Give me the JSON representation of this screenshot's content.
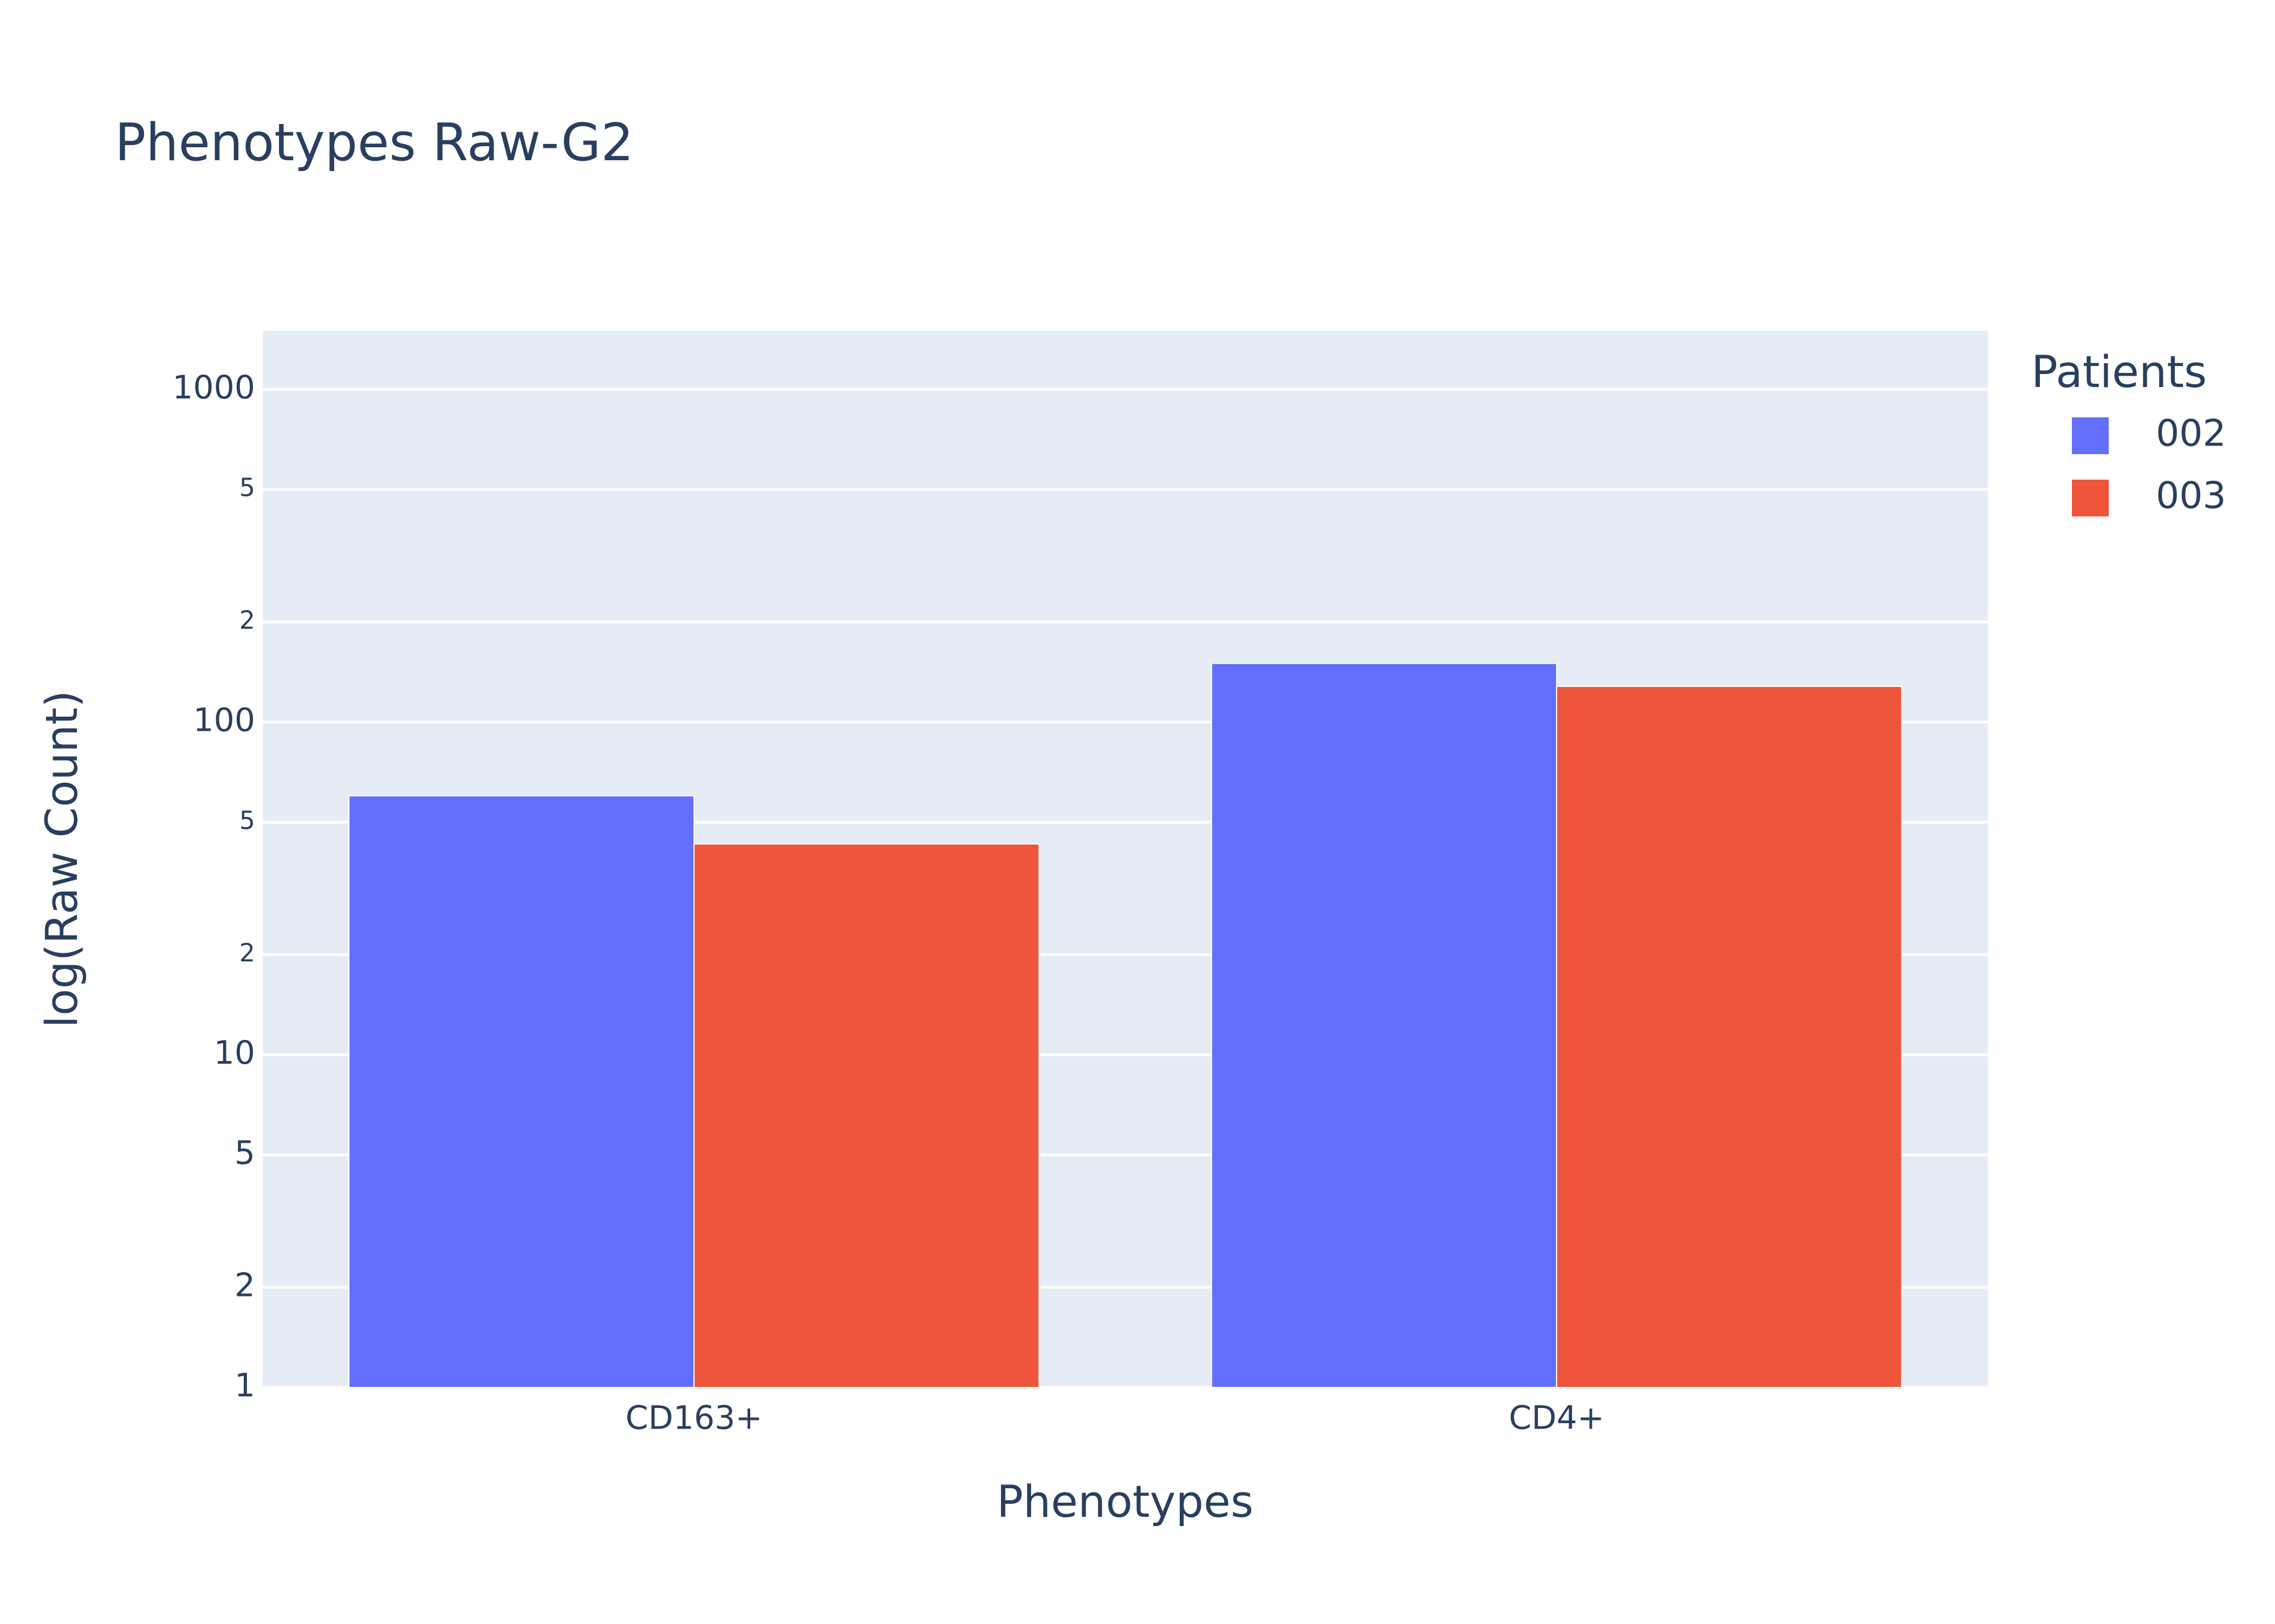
{
  "chart_data": {
    "type": "bar",
    "title": "Phenotypes Raw-G2",
    "x_label": "Phenotypes",
    "y_label": "log(Raw Count)",
    "categories": [
      "CD163+",
      "CD4+"
    ],
    "series": [
      {
        "name": "002",
        "color": "#636efa",
        "values": [
          60,
          150
        ]
      },
      {
        "name": "003",
        "color": "#ef553b",
        "values": [
          43,
          128
        ]
      }
    ],
    "legend_title": "Patients",
    "legend_position": "right",
    "y_scale": "log",
    "ylim": [
      1,
      1500
    ],
    "yticks": [
      1,
      2,
      5,
      10,
      {
        "value": 20,
        "label": "2"
      },
      {
        "value": 50,
        "label": "5"
      },
      100,
      {
        "value": 200,
        "label": "2"
      },
      {
        "value": 500,
        "label": "5"
      },
      1000
    ],
    "grid": true,
    "plot_background": "#e5ecf6"
  }
}
